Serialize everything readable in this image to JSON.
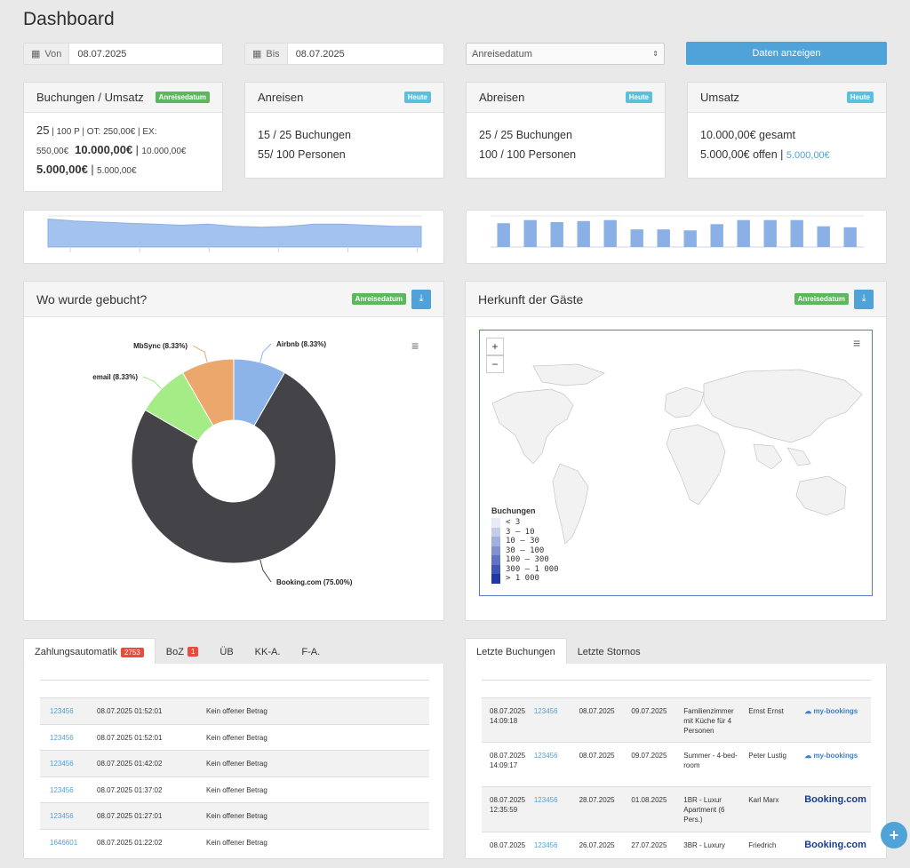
{
  "page_title": "Dashboard",
  "filters": {
    "von_label": "Von",
    "von_value": "08.07.2025",
    "bis_label": "Bis",
    "bis_value": "08.07.2025",
    "select_value": "Anreisedatum",
    "submit_label": "Daten anzeigen"
  },
  "cards": {
    "buchungen": {
      "title": "Buchungen / Umsatz",
      "badge": "Anreisedatum",
      "line1_count": "25",
      "line1_detail": " | 100 P | OT: 250,00€ | EX: 550,00€",
      "line2_total": "10.000,00€",
      "line2_sep": " | ",
      "line2_small": "10.000,00€",
      "line3_total": "5.000,00€",
      "line3_sep": " | ",
      "line3_small": "5.000,00€"
    },
    "anreisen": {
      "title": "Anreisen",
      "badge": "Heute",
      "line1": "15 / 25 Buchungen",
      "line2": "55/ 100 Personen"
    },
    "abreisen": {
      "title": "Abreisen",
      "badge": "Heute",
      "line1": "25 / 25 Buchungen",
      "line2": "100 / 100 Personen"
    },
    "umsatz": {
      "title": "Umsatz",
      "badge": "Heute",
      "line1": "10.000,00€ gesamt",
      "line2": "5.000,00€ offen | ",
      "line2_blue": "5.000,00€"
    }
  },
  "sparkline_data": {
    "area_values": [
      27,
      25,
      24,
      23,
      22,
      21,
      22,
      20,
      19,
      20,
      22,
      22,
      21,
      20,
      20
    ],
    "bar_values": [
      23,
      26,
      24,
      25,
      26,
      17,
      17,
      16,
      22,
      26,
      26,
      26,
      20,
      19
    ]
  },
  "wo_gebucht": {
    "title": "Wo wurde gebucht?",
    "badge": "Anreisedatum",
    "chart_data": {
      "type": "pie",
      "categories": [
        "Airbnb",
        "Booking.com",
        "email",
        "MbSync"
      ],
      "values": [
        8.33,
        75.0,
        8.33,
        8.33
      ],
      "labels": [
        "Airbnb (8.33%)",
        "Booking.com (75.00%)",
        "email (8.33%)",
        "MbSync (8.33%)"
      ],
      "colors": [
        "#8db4e8",
        "#434348",
        "#a3ec86",
        "#eca76c"
      ]
    }
  },
  "herkunft": {
    "title": "Herkunft der Gäste",
    "badge": "Anreisedatum",
    "zoom_in": "+",
    "zoom_out": "−",
    "legend_title": "Buchungen",
    "legend_items": [
      "< 3",
      "3 – 10",
      "10 – 30",
      "30 – 100",
      "100 – 300",
      "300 – 1 000",
      "> 1 000"
    ],
    "legend_colors": [
      "#e6ebf5",
      "#c3cdea",
      "#a2b0de",
      "#8192d1",
      "#6073c4",
      "#3f55b7",
      "#1f37a9"
    ]
  },
  "left_tabs": [
    {
      "label": "Zahlungsautomatik",
      "badge": "2753"
    },
    {
      "label": "BoZ",
      "badge": "1"
    },
    {
      "label": "ÜB"
    },
    {
      "label": "KK-A."
    },
    {
      "label": "F-A."
    }
  ],
  "payments": [
    {
      "id": "123456",
      "date": "08.07.2025 01:52:01",
      "status": "Kein offener Betrag"
    },
    {
      "id": "123456",
      "date": "08.07.2025 01:52:01",
      "status": "Kein offener Betrag"
    },
    {
      "id": "123456",
      "date": "08.07.2025 01:42:02",
      "status": "Kein offener Betrag"
    },
    {
      "id": "123456",
      "date": "08.07.2025 01:37:02",
      "status": "Kein offener Betrag"
    },
    {
      "id": "123456",
      "date": "08.07.2025 01:27:01",
      "status": "Kein offener Betrag"
    },
    {
      "id": "1646601",
      "date": "08.07.2025 01:22:02",
      "status": "Kein offener Betrag"
    }
  ],
  "right_tabs": [
    {
      "label": "Letzte Buchungen"
    },
    {
      "label": "Letzte Stornos"
    }
  ],
  "bookings": [
    {
      "created": "08.07.2025",
      "created_time": "14:09:18",
      "id": "123456",
      "arrival": "08.07.2025",
      "departure": "09.07.2025",
      "room": "Familienzimmer mit Küche für 4 Personen",
      "guest": "Ernst Ernst",
      "source": "my-bookings"
    },
    {
      "created": "08.07.2025",
      "created_time": "14:09:17",
      "id": "123456",
      "arrival": "08.07.2025",
      "departure": "09.07.2025",
      "room": "Summer - 4-bed-room",
      "guest": "Peter Lustig",
      "source": "my-bookings"
    },
    {
      "created": "08.07.2025",
      "created_time": "12:35:59",
      "id": "123456",
      "arrival": "28.07.2025",
      "departure": "01.08.2025",
      "room": "1BR - Luxur Apartment (6 Pers.)",
      "guest": "Karl Marx",
      "source": "Booking.com"
    },
    {
      "created": "08.07.2025",
      "created_time": "",
      "id": "123456",
      "arrival": "26.07.2025",
      "departure": "27.07.2025",
      "room": "3BR - Luxury",
      "guest": "Friedrich",
      "source": "Booking.com"
    }
  ],
  "fab_label": "+"
}
